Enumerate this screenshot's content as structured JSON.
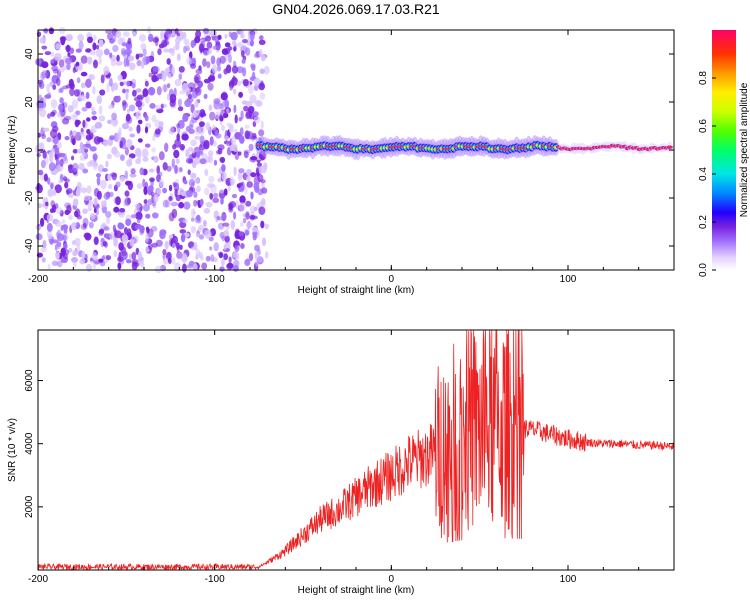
{
  "title": "GN04.2026.069.17.03.R21",
  "colors": {
    "snr_line": "#ee2222",
    "scatter": "#7722dd",
    "axis": "#000000"
  },
  "chart_data": [
    {
      "type": "heatmap",
      "xlabel": "Height of straight line (km)",
      "ylabel": "Frequency (Hz)",
      "xlim": [
        -200,
        160
      ],
      "ylim": [
        -50,
        50
      ],
      "xticks": [
        -200,
        -100,
        0,
        100
      ],
      "yticks": [
        -40,
        -20,
        0,
        20,
        40
      ],
      "noise_region_x": [
        -200,
        -75
      ],
      "signal_start_x": -75,
      "signal_track_y": 1,
      "colorbar": {
        "label": "Normalized spectral amplitude",
        "range": [
          0,
          1
        ],
        "ticks": [
          "0.0",
          "0.2",
          "0.4",
          "0.6",
          "0.8"
        ]
      }
    },
    {
      "type": "line",
      "xlabel": "Height of straight line (km)",
      "ylabel": "SNR (10 * v/v)",
      "xlim": [
        -200,
        160
      ],
      "ylim": [
        0,
        7600
      ],
      "xticks": [
        -200,
        -100,
        0,
        100
      ],
      "yticks": [
        2000,
        4000,
        6000
      ],
      "envelope": {
        "x": [
          -200,
          -75,
          -70,
          -60,
          -50,
          -40,
          -30,
          -20,
          -10,
          0,
          10,
          20,
          30,
          40,
          50,
          60,
          70,
          80,
          90,
          100,
          110,
          120,
          130,
          140,
          150,
          160
        ],
        "y": [
          100,
          100,
          250,
          600,
          1100,
          1600,
          1900,
          2300,
          2700,
          3000,
          3400,
          3600,
          3900,
          4300,
          4500,
          4600,
          4500,
          4450,
          4300,
          4150,
          4050,
          4000,
          4000,
          3950,
          3950,
          3900
        ]
      }
    }
  ]
}
